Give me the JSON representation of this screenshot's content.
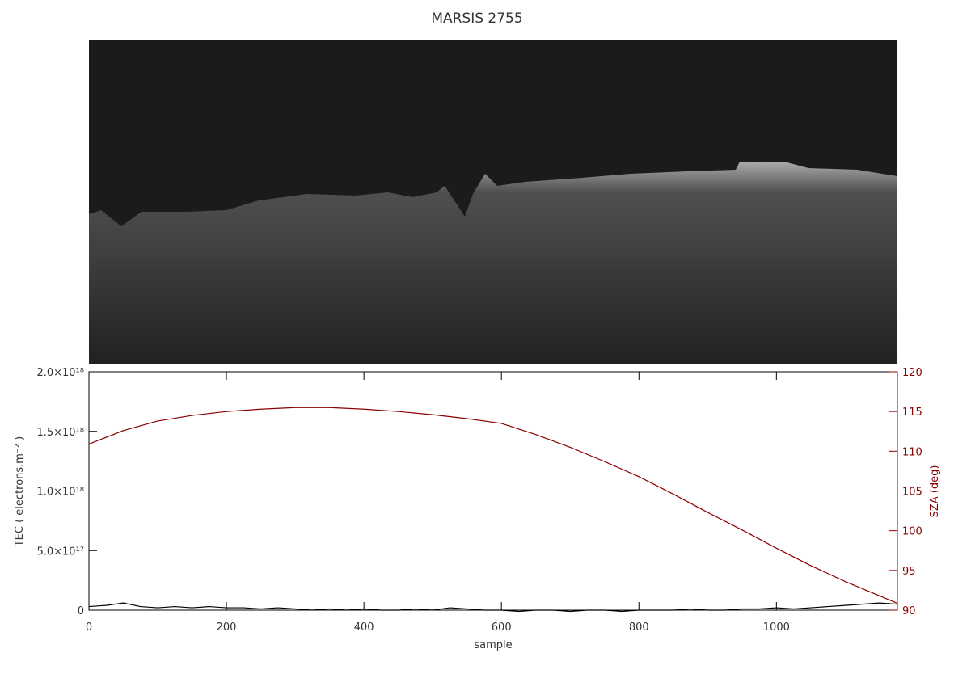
{
  "chart_data": {
    "type": "line",
    "title": "MARSIS 2755",
    "x_label": "sample",
    "y_label": "TEC ( electrons.m⁻² )",
    "y2_label": "SZA (deg)",
    "xlim": [
      0,
      1176
    ],
    "xticks": [
      0,
      200,
      400,
      600,
      800,
      1000
    ],
    "ylim": [
      0,
      2e+18
    ],
    "yticks": [
      0,
      {
        "value": 5e+17,
        "label": "5.0×10¹⁷"
      },
      {
        "value": 1e+18,
        "label": "1.0×10¹⁸"
      },
      {
        "value": 1.5e+18,
        "label": "1.5×10¹⁸"
      },
      {
        "value": 2e+18,
        "label": "2.0×10¹⁸"
      }
    ],
    "y2lim": [
      90,
      120
    ],
    "y2ticks": [
      90,
      95,
      100,
      105,
      110,
      115,
      120
    ],
    "series": [
      {
        "color": "#000000",
        "x": [
          0,
          25,
          50,
          75,
          100,
          125,
          150,
          175,
          200,
          225,
          250,
          275,
          300,
          325,
          350,
          375,
          400,
          425,
          450,
          475,
          500,
          525,
          550,
          575,
          600,
          625,
          650,
          675,
          700,
          725,
          750,
          775,
          800,
          825,
          850,
          875,
          900,
          925,
          950,
          975,
          1000,
          1025,
          1050,
          1075,
          1100,
          1125,
          1150,
          1175
        ],
        "values": [
          3e+16,
          4e+16,
          6e+16,
          3e+16,
          2e+16,
          3e+16,
          2e+16,
          3e+16,
          2e+16,
          2e+16,
          1e+16,
          2e+16,
          1e+16,
          0,
          1e+16,
          0,
          1e+16,
          0,
          0,
          1e+16,
          0,
          2e+16,
          1e+16,
          0,
          0,
          -1e+16,
          0,
          0,
          -1e+16,
          0,
          0,
          -1e+16,
          0,
          0,
          0,
          1e+16,
          0,
          0,
          1e+16,
          1e+16,
          2e+16,
          1e+16,
          2e+16,
          3e+16,
          4e+16,
          5e+16,
          6e+16,
          5e+16
        ]
      },
      {
        "color": "#8b0000",
        "axis": "y2",
        "x": [
          0,
          50,
          100,
          150,
          200,
          250,
          300,
          350,
          400,
          450,
          500,
          550,
          600,
          650,
          700,
          750,
          800,
          850,
          900,
          950,
          1000,
          1050,
          1100,
          1150,
          1175
        ],
        "values": [
          110.9,
          112.6,
          113.8,
          114.5,
          115.0,
          115.3,
          115.5,
          115.5,
          115.3,
          115.0,
          114.6,
          114.1,
          113.5,
          112.1,
          110.5,
          108.7,
          106.8,
          104.6,
          102.3,
          100.1,
          97.8,
          95.6,
          93.6,
          91.8,
          90.9
        ]
      }
    ]
  }
}
